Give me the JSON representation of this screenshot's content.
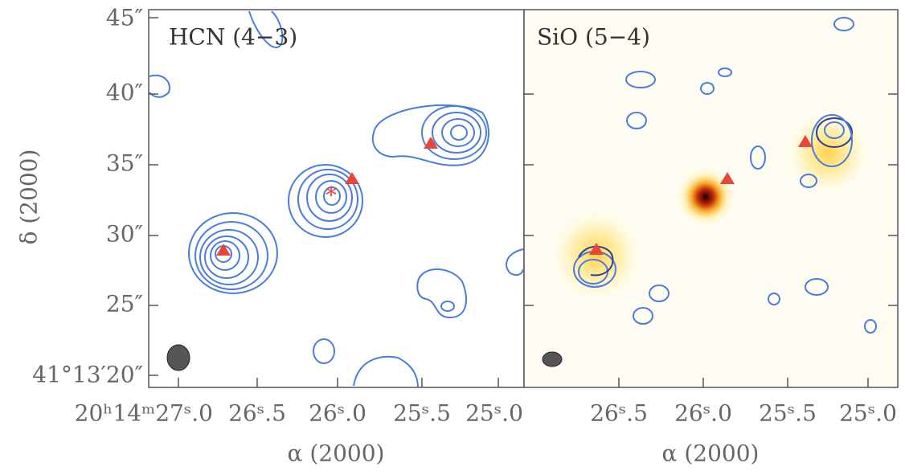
{
  "panels": [
    {
      "title": "HCN (4−3)",
      "x_ticks": [
        "20ʰ14ᵐ27ˢ.0",
        "26ˢ.5",
        "26ˢ.0",
        "25ˢ.5",
        "25ˢ.0"
      ],
      "x_label": "α (2000)",
      "y_ticks": [
        "45″",
        "40″",
        "35″",
        "30″",
        "25″",
        "41°13′20″"
      ],
      "y_label": "δ (2000)"
    },
    {
      "title": "SiO (5−4)",
      "x_ticks": [
        "26ˢ.5",
        "26ˢ.0",
        "25ˢ.5",
        "25ˢ.0"
      ],
      "x_label": "α (2000)"
    }
  ]
}
